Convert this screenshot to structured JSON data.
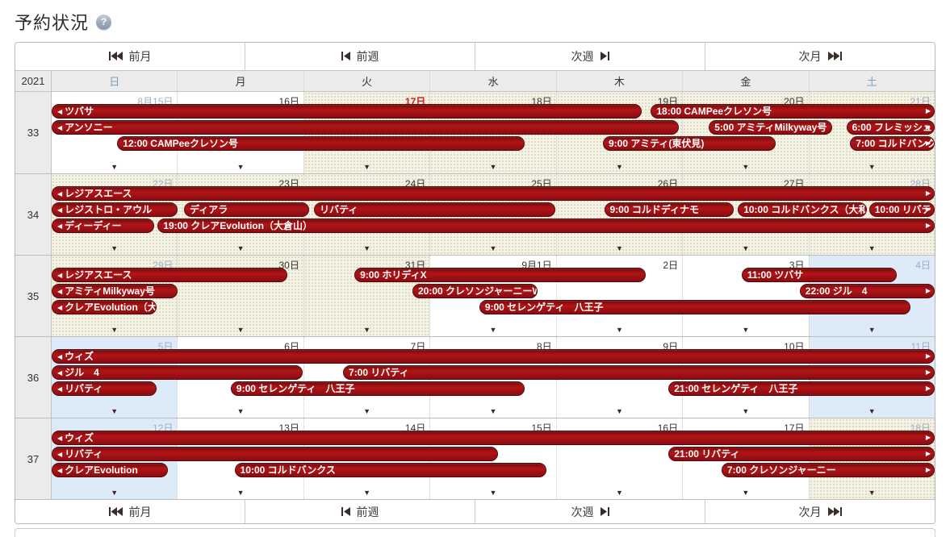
{
  "page": {
    "title": "予約状況"
  },
  "help": {
    "glyph": "?"
  },
  "nav": {
    "prev_month": "前月",
    "prev_week": "前週",
    "next_week": "次週",
    "next_month": "次月"
  },
  "header": {
    "year": "2021",
    "weekdays": [
      {
        "label": "日",
        "tone": "sun"
      },
      {
        "label": "月",
        "tone": "weekday"
      },
      {
        "label": "火",
        "tone": "weekday"
      },
      {
        "label": "水",
        "tone": "weekday"
      },
      {
        "label": "木",
        "tone": "weekday"
      },
      {
        "label": "金",
        "tone": "weekday"
      },
      {
        "label": "土",
        "tone": "sat"
      }
    ]
  },
  "marker_glyph": "▼",
  "colors": {
    "bar_red": "#a81014",
    "today_red": "#c5211e",
    "weekend_date_text": "#9cadc4",
    "beige_cell": "#f4f2e5",
    "blue_cell": "#dcebf7",
    "header_gray": "#ececec"
  },
  "weeks": [
    {
      "number": "33",
      "days": [
        {
          "date": "8月15日",
          "tone": "weekend",
          "bg": "white"
        },
        {
          "date": "16日",
          "tone": "normal",
          "bg": "white"
        },
        {
          "date": "17日",
          "tone": "today",
          "bg": "beige"
        },
        {
          "date": "18日",
          "tone": "normal",
          "bg": "beige"
        },
        {
          "date": "19日",
          "tone": "normal",
          "bg": "beige"
        },
        {
          "date": "20日",
          "tone": "normal",
          "bg": "beige"
        },
        {
          "date": "21日",
          "tone": "weekend",
          "bg": "beige"
        }
      ],
      "bars": [
        {
          "row": 0,
          "start": 0,
          "end": 4.68,
          "label": "ツバサ",
          "arrows": "l"
        },
        {
          "row": 0,
          "start": 4.75,
          "end": 7,
          "label": "18:00 CAMPeeクレソン号",
          "arrows": "r"
        },
        {
          "row": 1,
          "start": 0,
          "end": 4.97,
          "label": "アンソニー",
          "arrows": "l"
        },
        {
          "row": 1,
          "start": 5.21,
          "end": 6.19,
          "label": "5:00 アミティMilkyway号",
          "arrows": ""
        },
        {
          "row": 1,
          "start": 6.3,
          "end": 7,
          "label": "6:00 フレミッシュ",
          "arrows": "r"
        },
        {
          "row": 2,
          "start": 0.52,
          "end": 3.75,
          "label": "12:00 CAMPeeクレソン号",
          "arrows": ""
        },
        {
          "row": 2,
          "start": 4.37,
          "end": 5.74,
          "label": "9:00 アミティ(東伏見)",
          "arrows": ""
        },
        {
          "row": 2,
          "start": 6.33,
          "end": 7,
          "label": "7:00 コルドバンク",
          "arrows": "r"
        }
      ]
    },
    {
      "number": "34",
      "days": [
        {
          "date": "22日",
          "tone": "weekend",
          "bg": "beige"
        },
        {
          "date": "23日",
          "tone": "normal",
          "bg": "beige"
        },
        {
          "date": "24日",
          "tone": "normal",
          "bg": "beige"
        },
        {
          "date": "25日",
          "tone": "normal",
          "bg": "beige"
        },
        {
          "date": "26日",
          "tone": "normal",
          "bg": "beige"
        },
        {
          "date": "27日",
          "tone": "normal",
          "bg": "beige"
        },
        {
          "date": "28日",
          "tone": "weekend",
          "bg": "beige"
        }
      ],
      "bars": [
        {
          "row": 0,
          "start": 0,
          "end": 7,
          "label": "レジアスエース",
          "arrows": "lr"
        },
        {
          "row": 1,
          "start": 0,
          "end": 1.0,
          "label": "レジストロ・アウル",
          "arrows": "l"
        },
        {
          "row": 1,
          "start": 1.05,
          "end": 2.04,
          "label": "ディアラ",
          "arrows": ""
        },
        {
          "row": 1,
          "start": 2.08,
          "end": 3.99,
          "label": "リバティ",
          "arrows": ""
        },
        {
          "row": 1,
          "start": 4.38,
          "end": 5.41,
          "label": "9:00 コルドディナモ",
          "arrows": ""
        },
        {
          "row": 1,
          "start": 5.44,
          "end": 6.46,
          "label": "10:00 コルドバンクス（大和",
          "arrows": ""
        },
        {
          "row": 1,
          "start": 6.48,
          "end": 7,
          "label": "10:00 リバテ",
          "arrows": "r"
        },
        {
          "row": 2,
          "start": 0,
          "end": 0.81,
          "label": "ディーディー",
          "arrows": "l"
        },
        {
          "row": 2,
          "start": 0.84,
          "end": 7,
          "label": "19:00 クレアEvolution（大倉山）",
          "arrows": "r"
        }
      ]
    },
    {
      "number": "35",
      "days": [
        {
          "date": "29日",
          "tone": "weekend",
          "bg": "beige"
        },
        {
          "date": "30日",
          "tone": "normal",
          "bg": "beige"
        },
        {
          "date": "31日",
          "tone": "normal",
          "bg": "beige"
        },
        {
          "date": "9月1日",
          "tone": "normal",
          "bg": "white"
        },
        {
          "date": "2日",
          "tone": "normal",
          "bg": "white"
        },
        {
          "date": "3日",
          "tone": "normal",
          "bg": "white"
        },
        {
          "date": "4日",
          "tone": "weekend",
          "bg": "blue"
        }
      ],
      "bars": [
        {
          "row": 0,
          "start": 0,
          "end": 1.87,
          "label": "レジアスエース",
          "arrows": "l"
        },
        {
          "row": 0,
          "start": 2.4,
          "end": 4.71,
          "label": "9:00 ホリディX",
          "arrows": ""
        },
        {
          "row": 0,
          "start": 5.47,
          "end": 6.7,
          "label": "11:00 ツバサ",
          "arrows": ""
        },
        {
          "row": 1,
          "start": 0,
          "end": 1.0,
          "label": "アミティMilkyway号",
          "arrows": "l"
        },
        {
          "row": 1,
          "start": 2.86,
          "end": 3.85,
          "label": "20:00 クレソンジャーニーW",
          "arrows": ""
        },
        {
          "row": 1,
          "start": 5.93,
          "end": 7,
          "label": "22:00 ジル　4",
          "arrows": "r"
        },
        {
          "row": 2,
          "start": 0,
          "end": 0.83,
          "label": "クレアEvolution（大",
          "arrows": "l"
        },
        {
          "row": 2,
          "start": 3.39,
          "end": 6.81,
          "label": "9:00 セレンゲティ　八王子",
          "arrows": ""
        }
      ]
    },
    {
      "number": "36",
      "days": [
        {
          "date": "5日",
          "tone": "weekend",
          "bg": "blue"
        },
        {
          "date": "6日",
          "tone": "normal",
          "bg": "white"
        },
        {
          "date": "7日",
          "tone": "normal",
          "bg": "white"
        },
        {
          "date": "8日",
          "tone": "normal",
          "bg": "white"
        },
        {
          "date": "9日",
          "tone": "normal",
          "bg": "white"
        },
        {
          "date": "10日",
          "tone": "normal",
          "bg": "white"
        },
        {
          "date": "11日",
          "tone": "weekend",
          "bg": "blue"
        }
      ],
      "bars": [
        {
          "row": 0,
          "start": 0,
          "end": 7,
          "label": "ウィズ",
          "arrows": "lr"
        },
        {
          "row": 1,
          "start": 0,
          "end": 1.99,
          "label": "ジル　4",
          "arrows": "l"
        },
        {
          "row": 1,
          "start": 2.31,
          "end": 7,
          "label": "7:00 リバティ",
          "arrows": "r"
        },
        {
          "row": 2,
          "start": 0,
          "end": 0.83,
          "label": "リバティ",
          "arrows": "l"
        },
        {
          "row": 2,
          "start": 1.42,
          "end": 3.75,
          "label": "9:00 セレンゲティ　八王子",
          "arrows": ""
        },
        {
          "row": 2,
          "start": 4.89,
          "end": 7,
          "label": "21:00 セレンゲティ　八王子",
          "arrows": "r"
        }
      ]
    },
    {
      "number": "37",
      "days": [
        {
          "date": "12日",
          "tone": "weekend",
          "bg": "blue"
        },
        {
          "date": "13日",
          "tone": "normal",
          "bg": "white"
        },
        {
          "date": "14日",
          "tone": "normal",
          "bg": "white"
        },
        {
          "date": "15日",
          "tone": "normal",
          "bg": "white"
        },
        {
          "date": "16日",
          "tone": "normal",
          "bg": "white"
        },
        {
          "date": "17日",
          "tone": "normal",
          "bg": "white"
        },
        {
          "date": "18日",
          "tone": "weekend",
          "bg": "beige"
        }
      ],
      "bars": [
        {
          "row": 0,
          "start": 0,
          "end": 7,
          "label": "ウィズ",
          "arrows": "lr"
        },
        {
          "row": 1,
          "start": 0,
          "end": 3.54,
          "label": "リバティ",
          "arrows": "l"
        },
        {
          "row": 1,
          "start": 4.89,
          "end": 7,
          "label": "21:00 リバティ",
          "arrows": "r"
        },
        {
          "row": 2,
          "start": 0,
          "end": 0.92,
          "label": "クレアEvolution",
          "arrows": "l"
        },
        {
          "row": 2,
          "start": 1.45,
          "end": 3.92,
          "label": "10:00 コルドバンクス",
          "arrows": ""
        },
        {
          "row": 2,
          "start": 5.31,
          "end": 7,
          "label": "7:00 クレソンジャーニー",
          "arrows": "r"
        }
      ]
    }
  ]
}
